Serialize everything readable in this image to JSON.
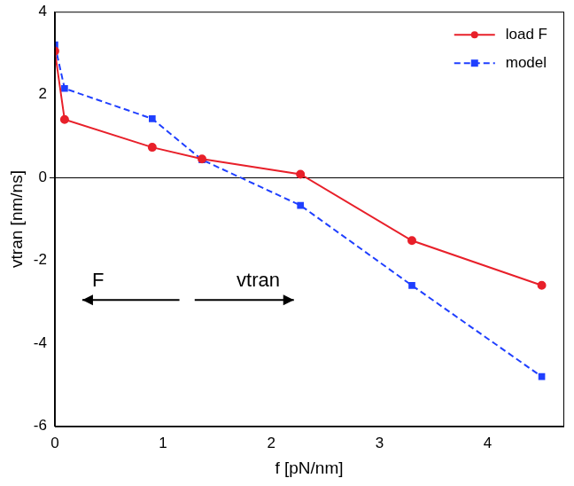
{
  "chart_data": {
    "type": "line",
    "x_label": "f [pN/nm]",
    "y_label": "vtran [nm/ns]",
    "annotations": [
      "F",
      "vtran"
    ],
    "x": [
      0,
      0.09,
      0.9,
      1.36,
      2.27,
      3.3,
      4.5
    ],
    "series": [
      {
        "name": "load F",
        "color": "#e8202a",
        "marker": "circle",
        "line_style": "solid",
        "values": [
          3.05,
          1.4,
          0.73,
          0.45,
          0.08,
          -1.52,
          -2.6
        ]
      },
      {
        "name": "model",
        "color": "#1f3fff",
        "marker": "square",
        "line_style": "dashed",
        "values": [
          3.2,
          2.15,
          1.42,
          0.43,
          -0.67,
          -2.6,
          -4.8
        ]
      }
    ],
    "xlim": [
      0,
      4.7
    ],
    "ylim": [
      -6,
      4
    ],
    "xticks": [
      0,
      1,
      2,
      3,
      4
    ],
    "yticks": [
      -6,
      -4,
      -2,
      0,
      2,
      4
    ],
    "grid": false,
    "legend": "upper right"
  }
}
